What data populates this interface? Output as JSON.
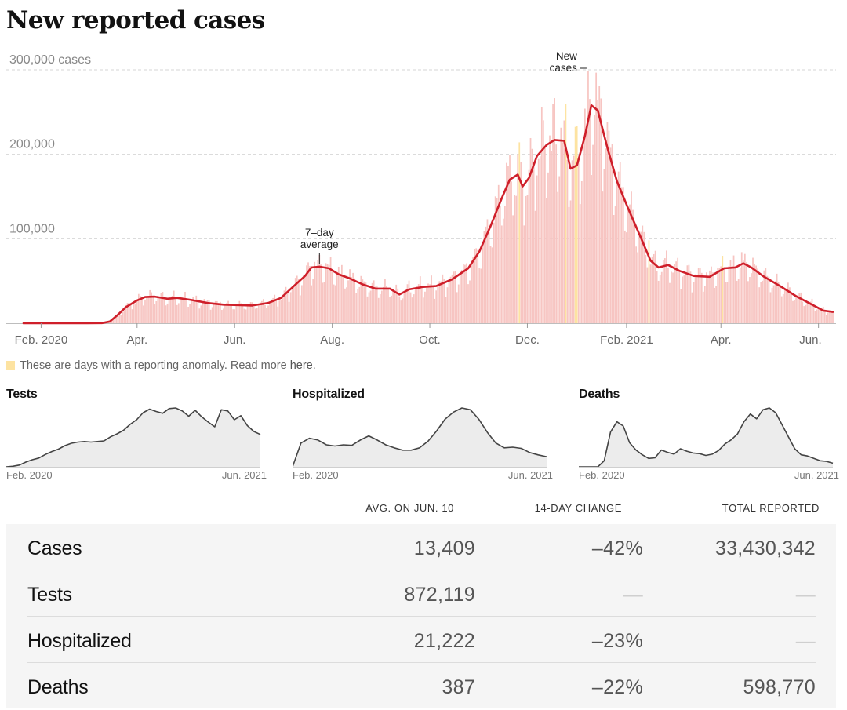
{
  "title": "New reported cases",
  "chart_data": [
    {
      "type": "bar",
      "title": "New reported cases",
      "y_unit_label": "300,000 cases",
      "ylim": [
        0,
        300000
      ],
      "y_ticks": [
        {
          "value": 300000,
          "label": "300,000 cases"
        },
        {
          "value": 200000,
          "label": "200,000"
        },
        {
          "value": 100000,
          "label": "100,000"
        }
      ],
      "x_ticks": [
        {
          "date": "2020-02-01",
          "label": "Feb. 2020"
        },
        {
          "date": "2020-04-01",
          "label": "Apr."
        },
        {
          "date": "2020-06-01",
          "label": "Jun."
        },
        {
          "date": "2020-08-01",
          "label": "Aug."
        },
        {
          "date": "2020-10-01",
          "label": "Oct."
        },
        {
          "date": "2020-12-01",
          "label": "Dec."
        },
        {
          "date": "2021-02-01",
          "label": "Feb. 2021"
        },
        {
          "date": "2021-04-01",
          "label": "Apr."
        },
        {
          "date": "2021-06-01",
          "label": "Jun."
        }
      ],
      "x_range": [
        "2020-01-21",
        "2021-06-10"
      ],
      "grid": true,
      "series": [
        {
          "name": "New cases",
          "kind": "daily bars",
          "color": "#f7c5c2",
          "anomaly_color": "#fde3a1",
          "anomaly_dates": [
            "2020-11-26",
            "2020-12-25",
            "2020-12-31",
            "2021-01-01",
            "2021-02-15",
            "2021-04-02"
          ]
        },
        {
          "name": "7-day average",
          "kind": "line",
          "color": "#cf1f2a",
          "points": [
            [
              "2020-01-21",
              0
            ],
            [
              "2020-03-01",
              10
            ],
            [
              "2020-03-10",
              200
            ],
            [
              "2020-03-15",
              2000
            ],
            [
              "2020-03-20",
              10000
            ],
            [
              "2020-03-25",
              19000
            ],
            [
              "2020-04-01",
              27000
            ],
            [
              "2020-04-06",
              31000
            ],
            [
              "2020-04-12",
              31500
            ],
            [
              "2020-04-20",
              29000
            ],
            [
              "2020-04-26",
              30000
            ],
            [
              "2020-05-05",
              27500
            ],
            [
              "2020-05-15",
              24000
            ],
            [
              "2020-05-25",
              22000
            ],
            [
              "2020-06-05",
              21500
            ],
            [
              "2020-06-12",
              21000
            ],
            [
              "2020-06-22",
              24000
            ],
            [
              "2020-06-30",
              30000
            ],
            [
              "2020-07-08",
              44000
            ],
            [
              "2020-07-15",
              56000
            ],
            [
              "2020-07-19",
              66000
            ],
            [
              "2020-07-24",
              67000
            ],
            [
              "2020-07-30",
              65000
            ],
            [
              "2020-08-05",
              58000
            ],
            [
              "2020-08-12",
              53000
            ],
            [
              "2020-08-20",
              46000
            ],
            [
              "2020-08-28",
              41000
            ],
            [
              "2020-09-06",
              41000
            ],
            [
              "2020-09-12",
              34000
            ],
            [
              "2020-09-18",
              40000
            ],
            [
              "2020-09-27",
              43000
            ],
            [
              "2020-10-05",
              44000
            ],
            [
              "2020-10-15",
              52000
            ],
            [
              "2020-10-25",
              65000
            ],
            [
              "2020-11-01",
              85000
            ],
            [
              "2020-11-08",
              115000
            ],
            [
              "2020-11-15",
              148000
            ],
            [
              "2020-11-20",
              170000
            ],
            [
              "2020-11-25",
              176000
            ],
            [
              "2020-11-28",
              162000
            ],
            [
              "2020-12-02",
              172000
            ],
            [
              "2020-12-07",
              198000
            ],
            [
              "2020-12-13",
              211000
            ],
            [
              "2020-12-18",
              217000
            ],
            [
              "2020-12-24",
              216000
            ],
            [
              "2020-12-28",
              183000
            ],
            [
              "2021-01-01",
              187000
            ],
            [
              "2021-01-06",
              222000
            ],
            [
              "2021-01-10",
              258000
            ],
            [
              "2021-01-14",
              252000
            ],
            [
              "2021-01-20",
              208000
            ],
            [
              "2021-01-26",
              168000
            ],
            [
              "2021-02-02",
              136000
            ],
            [
              "2021-02-10",
              101000
            ],
            [
              "2021-02-16",
              74000
            ],
            [
              "2021-02-21",
              66000
            ],
            [
              "2021-02-27",
              69000
            ],
            [
              "2021-03-06",
              62000
            ],
            [
              "2021-03-15",
              56000
            ],
            [
              "2021-03-25",
              55000
            ],
            [
              "2021-04-03",
              65000
            ],
            [
              "2021-04-10",
              66000
            ],
            [
              "2021-04-15",
              71000
            ],
            [
              "2021-04-20",
              66000
            ],
            [
              "2021-04-28",
              55000
            ],
            [
              "2021-05-08",
              44000
            ],
            [
              "2021-05-18",
              32000
            ],
            [
              "2021-05-28",
              22000
            ],
            [
              "2021-06-04",
              15000
            ],
            [
              "2021-06-10",
              13409
            ]
          ]
        }
      ],
      "annotations": [
        {
          "label_lines": [
            "7–day",
            "average"
          ],
          "target_date": "2020-07-24"
        },
        {
          "label_lines": [
            "New",
            "cases"
          ],
          "target_date": "2021-01-08"
        }
      ]
    },
    {
      "type": "area",
      "title": "Tests",
      "x_range_labels": [
        "Feb. 2020",
        "Jun. 2021"
      ],
      "x_range": [
        "2020-02-01",
        "2021-06-10"
      ],
      "series": [
        {
          "name": "Tests",
          "values": [
            0,
            1,
            3,
            8,
            12,
            15,
            21,
            26,
            30,
            36,
            40,
            42,
            43,
            42,
            43,
            44,
            51,
            56,
            62,
            72,
            80,
            92,
            98,
            94,
            91,
            99,
            100,
            95,
            86,
            96,
            85,
            76,
            68,
            97,
            95,
            80,
            87,
            70,
            60,
            55
          ]
        }
      ]
    },
    {
      "type": "area",
      "title": "Hospitalized",
      "x_range_labels": [
        "Feb. 2020",
        "Jun. 2021"
      ],
      "x_range": [
        "2020-03-01",
        "2021-06-10"
      ],
      "series": [
        {
          "name": "Hospitalized",
          "values": [
            0,
            40,
            48,
            45,
            37,
            35,
            37,
            36,
            45,
            52,
            45,
            37,
            32,
            28,
            28,
            32,
            43,
            60,
            80,
            92,
            99,
            96,
            80,
            58,
            40,
            32,
            33,
            31,
            24,
            20,
            17
          ]
        }
      ]
    },
    {
      "type": "area",
      "title": "Deaths",
      "x_range_labels": [
        "Feb. 2020",
        "Jun. 2021"
      ],
      "x_range": [
        "2020-02-01",
        "2021-06-10"
      ],
      "series": [
        {
          "name": "Deaths",
          "values": [
            0,
            0,
            0,
            0,
            10,
            58,
            75,
            68,
            40,
            28,
            20,
            14,
            15,
            28,
            24,
            21,
            30,
            26,
            23,
            22,
            19,
            21,
            27,
            38,
            45,
            55,
            75,
            88,
            80,
            95,
            98,
            90,
            70,
            50,
            30,
            20,
            18,
            14,
            10,
            9,
            6
          ]
        }
      ]
    }
  ],
  "ui": {
    "anomaly_note_text": "These are days with a reporting anomaly. Read more ",
    "anomaly_link": "here",
    "anomaly_note_end": "."
  },
  "table": {
    "headers": [
      "AVG. ON JUN. 10",
      "14-DAY CHANGE",
      "TOTAL REPORTED"
    ],
    "rows": [
      {
        "name": "Cases",
        "avg": "13,409",
        "change": "–42%",
        "total": "33,430,342"
      },
      {
        "name": "Tests",
        "avg": "872,119",
        "change": "—",
        "total": "—"
      },
      {
        "name": "Hospitalized",
        "avg": "21,222",
        "change": "–23%",
        "total": "—"
      },
      {
        "name": "Deaths",
        "avg": "387",
        "change": "–22%",
        "total": "598,770"
      }
    ]
  }
}
